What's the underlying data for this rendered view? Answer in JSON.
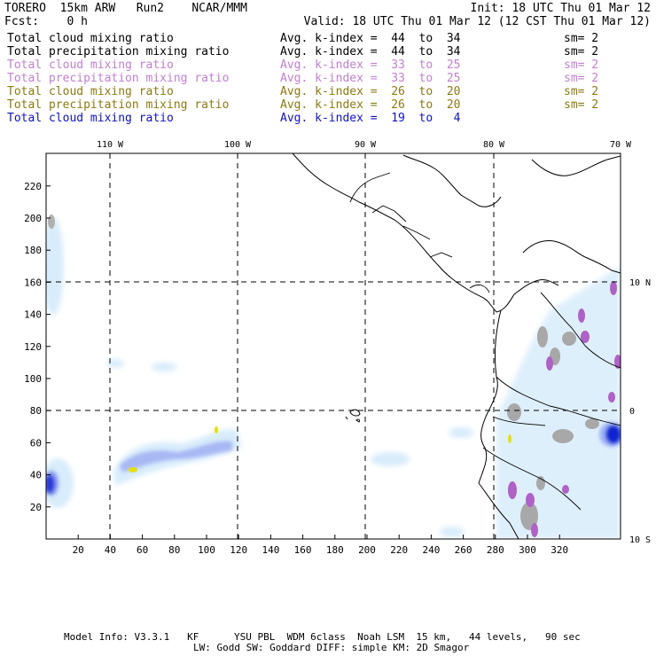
{
  "header": {
    "model": "TORERO  15km ARW   Run2    NCAR/MMM",
    "init": "Init: 18 UTC Thu 01 Mar 12",
    "fcst": "Fcst:    0 h",
    "valid": "Valid: 18 UTC Thu 01 Mar 12 (12 CST Thu 01 Mar 12)"
  },
  "legend": [
    {
      "field": "Total cloud mixing ratio",
      "avg": "Avg. k-index =  44  to  34",
      "sm": "sm= 2",
      "color": "#000000"
    },
    {
      "field": "Total precipitation mixing ratio",
      "avg": "Avg. k-index =  44  to  34",
      "sm": "sm= 2",
      "color": "#000000"
    },
    {
      "field": "Total cloud mixing ratio",
      "avg": "Avg. k-index =  33  to  25",
      "sm": "sm= 2",
      "color": "#c080d0"
    },
    {
      "field": "Total precipitation mixing ratio",
      "avg": "Avg. k-index =  33  to  25",
      "sm": "sm= 2",
      "color": "#c080d0"
    },
    {
      "field": "Total cloud mixing ratio",
      "avg": "Avg. k-index =  26  to  20",
      "sm": "sm= 2",
      "color": "#8a7a10"
    },
    {
      "field": "Total precipitation mixing ratio",
      "avg": "Avg. k-index =  26  to  20",
      "sm": "sm= 2",
      "color": "#8a7a10"
    },
    {
      "field": "Total cloud mixing ratio",
      "avg": "Avg. k-index =  19  to   4",
      "sm": "",
      "color": "#1010d0"
    }
  ],
  "map": {
    "lon_labels": [
      "110 W",
      "100 W",
      "90 W",
      "80 W",
      "70 W"
    ],
    "lat_labels": [
      "10 N",
      "0",
      "10 S"
    ],
    "x_ticks": [
      "20",
      "40",
      "60",
      "80",
      "100",
      "120",
      "140",
      "160",
      "180",
      "200",
      "220",
      "240",
      "260",
      "280",
      "300",
      "320"
    ],
    "y_ticks": [
      "20",
      "40",
      "60",
      "80",
      "100",
      "120",
      "140",
      "160",
      "180",
      "200",
      "220"
    ]
  },
  "footer": {
    "line1": "Model Info: V3.3.1   KF      YSU PBL  WDM 6class  Noah LSM  15 km,   44 levels,   90 sec",
    "line2": "LW: Godd SW: Goddard DIFF: simple KM: 2D Smagor"
  }
}
